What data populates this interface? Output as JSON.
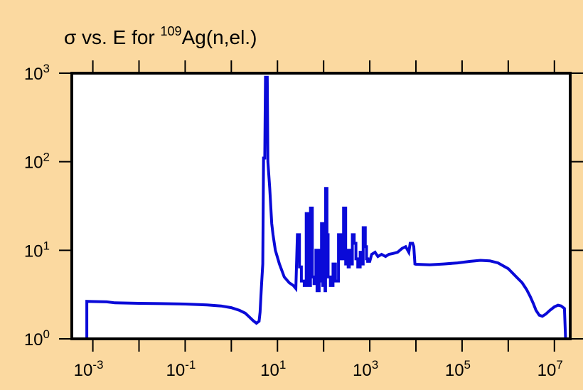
{
  "chart_data": {
    "type": "line",
    "title_parts": {
      "pre": "σ vs. E for ",
      "sup": "109",
      "post": "Ag(n,el.)"
    },
    "xlabel": "",
    "ylabel": "",
    "x_scale": "log",
    "y_scale": "log",
    "xlim": [
      0.00035,
      22000000
    ],
    "ylim": [
      1,
      1000
    ],
    "x_ticks": [
      {
        "base": "10",
        "exp": "-3",
        "value": 0.001
      },
      {
        "base": "10",
        "exp": "-1",
        "value": 0.1
      },
      {
        "base": "10",
        "exp": "1",
        "value": 10
      },
      {
        "base": "10",
        "exp": "3",
        "value": 1000
      },
      {
        "base": "10",
        "exp": "5",
        "value": 100000
      },
      {
        "base": "10",
        "exp": "7",
        "value": 10000000
      }
    ],
    "y_ticks": [
      {
        "base": "10",
        "exp": "0",
        "value": 1
      },
      {
        "base": "10",
        "exp": "1",
        "value": 10
      },
      {
        "base": "10",
        "exp": "2",
        "value": 100
      },
      {
        "base": "10",
        "exp": "3",
        "value": 1000
      }
    ],
    "grid": false,
    "colors": {
      "background": "#fbd9a0",
      "plot_area": "#ffffff",
      "series": "#0a0ad8",
      "axis": "#000000"
    },
    "series": [
      {
        "points": [
          [
            0.00074,
            1.0
          ],
          [
            0.00074,
            2.65
          ],
          [
            0.002,
            2.62
          ],
          [
            0.003,
            2.55
          ],
          [
            0.01,
            2.52
          ],
          [
            0.03,
            2.5
          ],
          [
            0.1,
            2.47
          ],
          [
            0.3,
            2.42
          ],
          [
            0.6,
            2.35
          ],
          [
            1.0,
            2.25
          ],
          [
            1.5,
            2.1
          ],
          [
            2.0,
            1.95
          ],
          [
            2.5,
            1.75
          ],
          [
            3.0,
            1.6
          ],
          [
            3.5,
            1.5
          ],
          [
            4.0,
            1.58
          ],
          [
            4.2,
            2.0
          ],
          [
            4.5,
            4.0
          ],
          [
            4.8,
            7.0
          ],
          [
            5.0,
            110
          ],
          [
            5.3,
            110
          ],
          [
            5.5,
            900
          ],
          [
            6.0,
            900
          ],
          [
            6.2,
            100
          ],
          [
            6.8,
            50
          ],
          [
            7.5,
            20
          ],
          [
            8.0,
            15
          ],
          [
            9.0,
            10
          ],
          [
            11,
            7
          ],
          [
            14,
            5
          ],
          [
            18,
            4.3
          ],
          [
            22,
            4.0
          ],
          [
            25,
            3.7
          ],
          [
            27,
            15
          ],
          [
            30,
            15
          ],
          [
            30,
            6.5
          ],
          [
            33,
            6.5
          ],
          [
            33,
            4.5
          ],
          [
            38,
            4.5
          ],
          [
            38,
            4.0
          ],
          [
            42,
            4.0
          ],
          [
            42,
            26
          ],
          [
            48,
            26
          ],
          [
            48,
            4.0
          ],
          [
            52,
            4.0
          ],
          [
            52,
            30
          ],
          [
            57,
            30
          ],
          [
            57,
            5.0
          ],
          [
            62,
            5.0
          ],
          [
            62,
            4.2
          ],
          [
            68,
            4.2
          ],
          [
            68,
            10
          ],
          [
            72,
            10
          ],
          [
            72,
            3.5
          ],
          [
            80,
            3.5
          ],
          [
            80,
            10
          ],
          [
            85,
            10
          ],
          [
            85,
            4.5
          ],
          [
            90,
            4.5
          ],
          [
            90,
            20
          ],
          [
            96,
            20
          ],
          [
            96,
            4.0
          ],
          [
            100,
            4.0
          ],
          [
            100,
            7.0
          ],
          [
            107,
            7.0
          ],
          [
            107,
            3.5
          ],
          [
            110,
            3.5
          ],
          [
            110,
            50
          ],
          [
            118,
            50
          ],
          [
            118,
            15
          ],
          [
            125,
            15
          ],
          [
            125,
            5.0
          ],
          [
            140,
            5.0
          ],
          [
            140,
            4.0
          ],
          [
            160,
            4.0
          ],
          [
            160,
            7.0
          ],
          [
            180,
            7.0
          ],
          [
            180,
            4.5
          ],
          [
            210,
            4.5
          ],
          [
            210,
            15
          ],
          [
            240,
            15
          ],
          [
            240,
            8.0
          ],
          [
            270,
            8.0
          ],
          [
            270,
            30
          ],
          [
            300,
            30
          ],
          [
            300,
            7.0
          ],
          [
            320,
            7.0
          ],
          [
            320,
            10
          ],
          [
            340,
            10
          ],
          [
            340,
            6.5
          ],
          [
            360,
            6.5
          ],
          [
            360,
            10
          ],
          [
            380,
            10
          ],
          [
            380,
            7.0
          ],
          [
            420,
            7.0
          ],
          [
            420,
            15
          ],
          [
            460,
            15
          ],
          [
            460,
            12
          ],
          [
            500,
            12
          ],
          [
            500,
            8.0
          ],
          [
            550,
            8.0
          ],
          [
            550,
            6.5
          ],
          [
            620,
            6.5
          ],
          [
            620,
            9.5
          ],
          [
            680,
            9.5
          ],
          [
            680,
            7.0
          ],
          [
            720,
            7.0
          ],
          [
            720,
            18
          ],
          [
            800,
            18
          ],
          [
            800,
            11
          ],
          [
            850,
            11
          ],
          [
            850,
            8.0
          ],
          [
            900,
            8.0
          ],
          [
            900,
            7.5
          ],
          [
            1000,
            7.5
          ],
          [
            1100,
            9.0
          ],
          [
            1300,
            9.5
          ],
          [
            1500,
            8.5
          ],
          [
            1800,
            9.0
          ],
          [
            2200,
            8.5
          ],
          [
            2600,
            9.0
          ],
          [
            3200,
            9.2
          ],
          [
            4000,
            9.5
          ],
          [
            5000,
            10.5
          ],
          [
            6000,
            11
          ],
          [
            7000,
            9.5
          ],
          [
            7500,
            12
          ],
          [
            8500,
            12
          ],
          [
            9000,
            11
          ],
          [
            9500,
            7.0
          ],
          [
            10000,
            6.95
          ],
          [
            20000,
            6.85
          ],
          [
            40000,
            7.0
          ],
          [
            80000,
            7.2
          ],
          [
            150000,
            7.5
          ],
          [
            250000,
            7.7
          ],
          [
            400000,
            7.6
          ],
          [
            600000,
            7.2
          ],
          [
            1000000,
            6.2
          ],
          [
            1500000,
            5.0
          ],
          [
            2000000,
            4.3
          ],
          [
            2500000,
            3.6
          ],
          [
            3000000,
            3.0
          ],
          [
            3500000,
            2.5
          ],
          [
            4000000,
            2.1
          ],
          [
            4700000,
            1.85
          ],
          [
            5500000,
            1.8
          ],
          [
            6500000,
            1.9
          ],
          [
            8000000,
            2.1
          ],
          [
            10000000,
            2.3
          ],
          [
            12000000,
            2.4
          ],
          [
            14000000,
            2.35
          ],
          [
            16500000,
            2.2
          ],
          [
            17500000,
            1.0
          ]
        ]
      }
    ]
  }
}
